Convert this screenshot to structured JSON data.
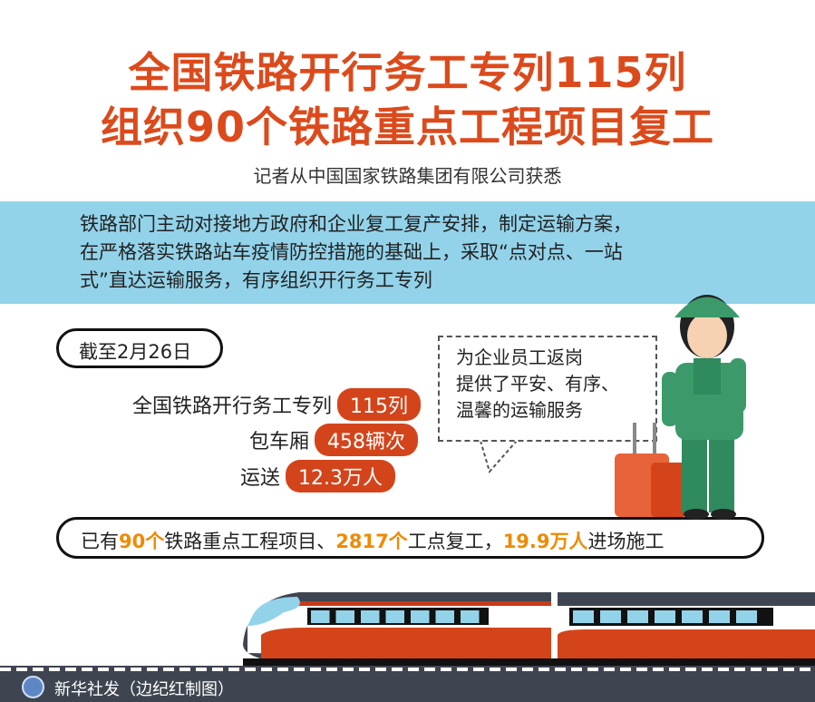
{
  "title": {
    "line1": "全国铁路开行务工专列115列",
    "line2": "组织90个铁路重点工程项目复工"
  },
  "subtitle": "记者从中国国家铁路集团有限公司获悉",
  "intro": {
    "lines": [
      "铁路部门主动对接地方政府和企业复工复产安排，制定运输方案，",
      "在严格落实铁路站车疫情防控措施的基础上，采取“点对点、一站",
      "式”直达运输服务，有序组织开行务工专列"
    ]
  },
  "date_label": "截至2月26日",
  "stats": [
    {
      "label": "全国铁路开行务工专列",
      "value": "115列"
    },
    {
      "label": "包车厢",
      "value": "458辆次"
    },
    {
      "label": "运送",
      "value": "12.3万人"
    }
  ],
  "summary": {
    "p1": "已有",
    "v1": "90个",
    "p2": "铁路重点工程项目、",
    "v2": "2817个",
    "p3": "工点复工，",
    "v3": "19.9万人",
    "p4": "进场施工"
  },
  "bubble": {
    "lines": [
      "为企业员工返岗",
      "提供了平安、有序、",
      "温馨的运输服务"
    ]
  },
  "footer": "新华社发（边纪红制图）",
  "colors": {
    "title": "#dc4a1c",
    "band": "#92d3ea",
    "badge": "#d4441a",
    "highlight": "#f08a00",
    "footer": "#3e4550"
  }
}
